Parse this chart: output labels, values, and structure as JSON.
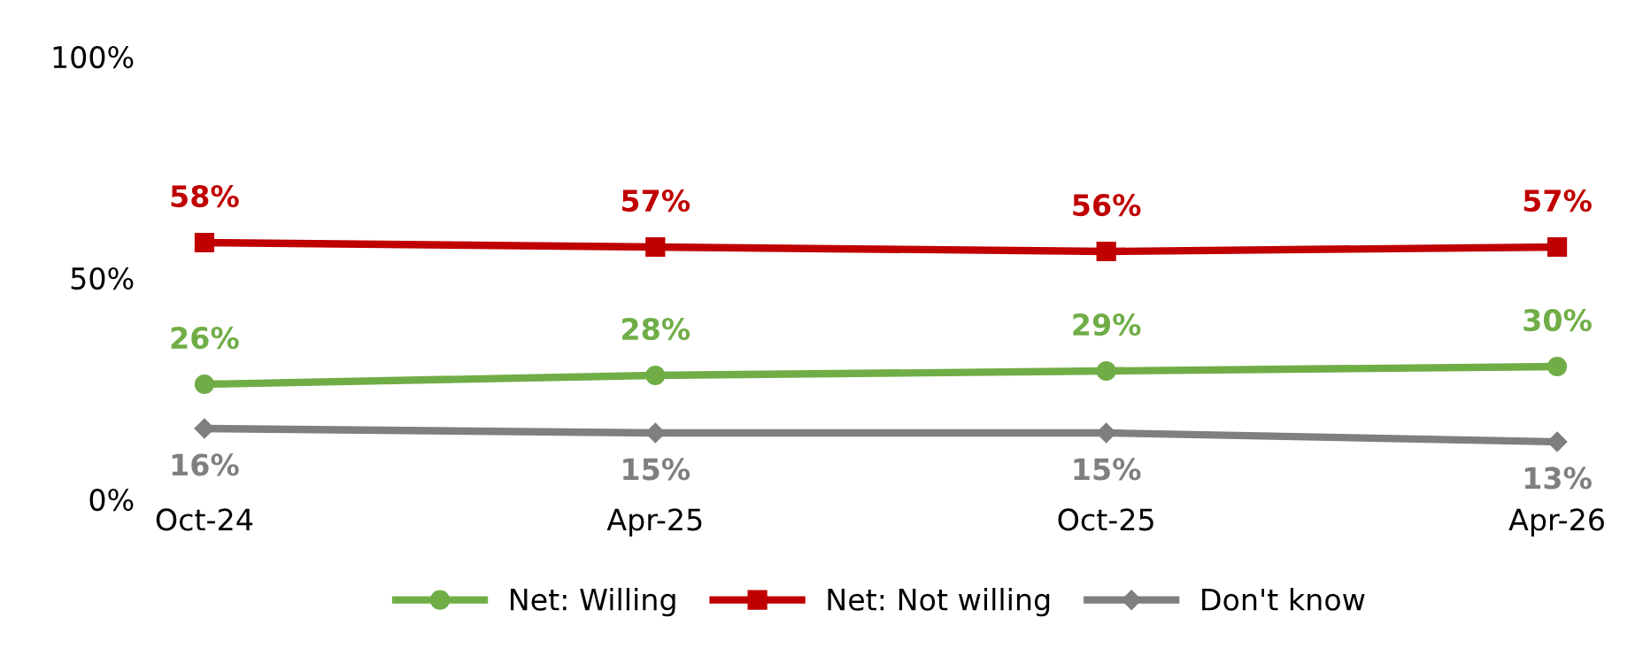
{
  "chart_data": {
    "type": "line",
    "categories": [
      "Oct-24",
      "Apr-25",
      "Oct-25",
      "Apr-26"
    ],
    "ylim": [
      0,
      100
    ],
    "yticks": [
      {
        "value": 0,
        "label": "0%"
      },
      {
        "value": 50,
        "label": "50%"
      },
      {
        "value": 100,
        "label": "100%"
      }
    ],
    "grid": false,
    "legend": "bottom",
    "line_style": "solid",
    "series": [
      {
        "name": "Net: Willing",
        "color": "#70ad47",
        "marker": "circle",
        "values": [
          26,
          28,
          29,
          30
        ],
        "value_labels": [
          "26%",
          "28%",
          "29%",
          "30%"
        ]
      },
      {
        "name": "Net: Not willing",
        "color": "#c00000",
        "marker": "square",
        "values": [
          58,
          57,
          56,
          57
        ],
        "value_labels": [
          "58%",
          "57%",
          "56%",
          "57%"
        ]
      },
      {
        "name": "Don't know",
        "color": "#7f7f7f",
        "marker": "diamond",
        "values": [
          16,
          15,
          15,
          13
        ],
        "value_labels": [
          "16%",
          "15%",
          "15%",
          "13%"
        ]
      }
    ]
  }
}
